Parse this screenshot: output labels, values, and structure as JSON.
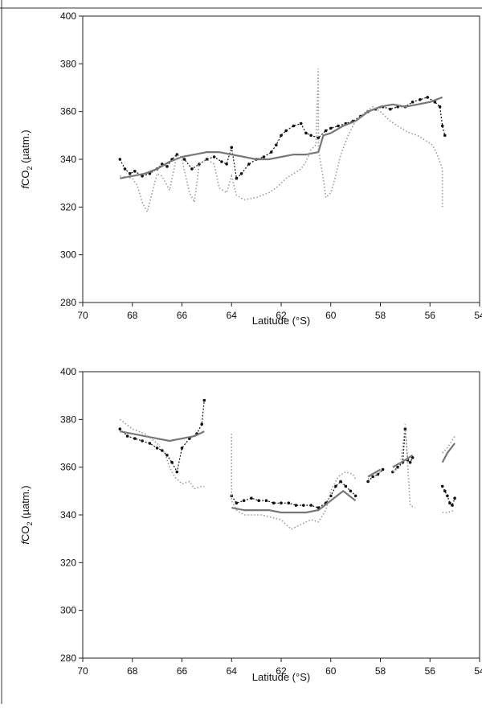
{
  "chart_data": [
    {
      "type": "scatter",
      "panel": "top",
      "xlabel": "Latitude (°S)",
      "ylabel": "fCO2 (µatm.)",
      "ylabel_parts": {
        "f": "f",
        "co": "CO",
        "sub": "2",
        "unit": " (µatm.)"
      },
      "xlim": [
        70,
        54
      ],
      "ylim": [
        280,
        400
      ],
      "x_ticks": [
        70,
        68,
        66,
        64,
        62,
        60,
        58,
        56,
        54
      ],
      "y_ticks": [
        280,
        300,
        320,
        340,
        360,
        380,
        400
      ],
      "x_tick_labels": [
        "70",
        "68",
        "66",
        "64",
        "62",
        "60",
        "58",
        "56",
        "54"
      ],
      "y_tick_labels": [
        "280",
        "300",
        "320",
        "340",
        "360",
        "380",
        "400"
      ],
      "grid": false,
      "series": [
        {
          "style": "black-dots",
          "color": "#111111",
          "segments": [
            {
              "x": [
                68.5,
                68.3,
                68.1,
                67.9,
                67.6,
                67.3,
                67.0,
                66.8,
                66.6,
                66.4,
                66.2,
                65.9,
                65.6,
                65.3,
                65.0,
                64.7,
                64.4,
                64.2,
                64.0,
                63.8,
                63.6,
                63.3,
                63.0,
                62.7,
                62.4,
                62.2,
                62.0,
                61.8,
                61.5,
                61.2,
                61.0,
                60.8,
                60.5,
                60.2,
                60.0,
                59.7,
                59.4,
                59.1,
                58.8,
                58.5,
                58.2,
                57.9,
                57.6,
                57.3,
                57.0,
                56.7,
                56.4,
                56.1,
                55.8,
                55.6,
                55.5,
                55.4
              ],
              "y": [
                340,
                336,
                334,
                335,
                333,
                334,
                336,
                338,
                337,
                340,
                342,
                340,
                336,
                338,
                340,
                341,
                339,
                338,
                345,
                332,
                334,
                338,
                340,
                341,
                343,
                346,
                350,
                352,
                354,
                355,
                351,
                350,
                349,
                352,
                353,
                354,
                355,
                356,
                358,
                360,
                361,
                362,
                361,
                362,
                362,
                364,
                365,
                366,
                364,
                362,
                354,
                350
              ]
            }
          ]
        },
        {
          "style": "grey-solid",
          "color": "#777777",
          "segments": [
            {
              "x": [
                68.5,
                68.0,
                67.5,
                67.0,
                66.5,
                66.0,
                65.5,
                65.0,
                64.5,
                64.0,
                63.5,
                63.0,
                62.5,
                62.0,
                61.5,
                61.0,
                60.5,
                60.3,
                60.0,
                59.5,
                59.0,
                58.5,
                58.0,
                57.5,
                57.0,
                56.5,
                56.0,
                55.5
              ],
              "y": [
                332,
                333,
                334,
                336,
                339,
                341,
                342,
                343,
                343,
                342,
                341,
                340,
                340,
                341,
                342,
                342,
                343,
                350,
                351,
                354,
                356,
                360,
                362,
                363,
                362,
                363,
                364,
                366
              ]
            }
          ]
        },
        {
          "style": "grey-dotted",
          "color": "#999999",
          "segments": [
            {
              "x": [
                68.5,
                68.0,
                67.8,
                67.6,
                67.4,
                67.2,
                67.0,
                66.8,
                66.5,
                66.2,
                66.0,
                65.7,
                65.5,
                65.3,
                65.0,
                64.7,
                64.5,
                64.2,
                64.0,
                63.8,
                63.5,
                63.0,
                62.5,
                62.2,
                62.0,
                61.8,
                61.5,
                61.2,
                61.0,
                60.8,
                60.6,
                60.5,
                60.5,
                60.3,
                60.2,
                60.0,
                59.8,
                59.6,
                59.3,
                59.0,
                58.6,
                58.3,
                58.0,
                57.6,
                57.3,
                57.0,
                56.8,
                56.5,
                56.2,
                55.9,
                55.7,
                55.5,
                55.5
              ],
              "y": [
                333,
                332,
                329,
                322,
                318,
                326,
                334,
                333,
                327,
                342,
                340,
                326,
                322,
                338,
                340,
                338,
                328,
                326,
                333,
                325,
                323,
                324,
                326,
                328,
                330,
                332,
                334,
                336,
                339,
                344,
                346,
                378,
                344,
                332,
                324,
                326,
                333,
                342,
                350,
                356,
                360,
                362,
                360,
                356,
                354,
                352,
                351,
                350,
                348,
                346,
                342,
                336,
                320
              ]
            }
          ]
        }
      ]
    },
    {
      "type": "scatter",
      "panel": "bottom",
      "xlabel": "Latitude (°S)",
      "ylabel": "fCO2 (µatm.)",
      "ylabel_parts": {
        "f": "f",
        "co": "CO",
        "sub": "2",
        "unit": " (µatm.)"
      },
      "xlim": [
        70,
        54
      ],
      "ylim": [
        280,
        400
      ],
      "x_ticks": [
        70,
        68,
        66,
        64,
        62,
        60,
        58,
        56,
        54
      ],
      "y_ticks": [
        280,
        300,
        320,
        340,
        360,
        380,
        400
      ],
      "x_tick_labels": [
        "70",
        "68",
        "66",
        "64",
        "62",
        "60",
        "58",
        "56",
        "54"
      ],
      "y_tick_labels": [
        "280",
        "300",
        "320",
        "340",
        "360",
        "380",
        "400"
      ],
      "grid": false,
      "series": [
        {
          "style": "black-dots",
          "color": "#111111",
          "segments": [
            {
              "x": [
                68.5,
                68.2,
                67.9,
                67.6,
                67.3,
                67.0,
                66.8,
                66.6,
                66.4,
                66.2,
                66.0,
                65.7,
                65.4,
                65.2,
                65.1
              ],
              "y": [
                376,
                373,
                372,
                371,
                370,
                368,
                367,
                365,
                362,
                358,
                368,
                372,
                374,
                378,
                388
              ]
            },
            {
              "x": [
                64.0,
                63.8,
                63.5,
                63.2,
                62.9,
                62.6,
                62.3,
                62.0,
                61.7,
                61.4,
                61.1,
                60.8,
                60.5,
                60.2,
                60.0,
                59.8,
                59.6,
                59.4,
                59.2,
                59.0
              ],
              "y": [
                348,
                345,
                346,
                347,
                346,
                346,
                345,
                345,
                345,
                344,
                344,
                344,
                343,
                345,
                348,
                352,
                354,
                352,
                350,
                348
              ]
            },
            {
              "x": [
                58.5,
                58.3,
                58.1,
                57.9
              ],
              "y": [
                354,
                356,
                357,
                359
              ]
            },
            {
              "x": [
                57.5,
                57.3,
                57.1,
                57.0,
                56.9,
                56.8,
                56.7
              ],
              "y": [
                358,
                360,
                362,
                376,
                363,
                362,
                364
              ]
            },
            {
              "x": [
                55.5,
                55.4,
                55.3,
                55.2,
                55.1,
                55.0
              ],
              "y": [
                352,
                350,
                348,
                345,
                344,
                347
              ]
            }
          ]
        },
        {
          "style": "grey-solid",
          "color": "#777777",
          "segments": [
            {
              "x": [
                68.5,
                68.0,
                67.5,
                67.0,
                66.5,
                66.0,
                65.5,
                65.1
              ],
              "y": [
                375,
                374,
                373,
                372,
                371,
                372,
                373,
                375
              ]
            },
            {
              "x": [
                64.0,
                63.5,
                63.0,
                62.5,
                62.0,
                61.5,
                61.0,
                60.5,
                60.0,
                59.5,
                59.0
              ],
              "y": [
                343,
                342,
                342,
                342,
                341,
                341,
                341,
                342,
                346,
                350,
                346
              ]
            },
            {
              "x": [
                58.5,
                58.0
              ],
              "y": [
                356,
                359
              ]
            },
            {
              "x": [
                57.5,
                57.0,
                56.7
              ],
              "y": [
                360,
                363,
                365
              ]
            },
            {
              "x": [
                55.5,
                55.3,
                55.0
              ],
              "y": [
                362,
                366,
                370
              ]
            }
          ]
        },
        {
          "style": "grey-dotted",
          "color": "#999999",
          "segments": [
            {
              "x": [
                68.5,
                68.0,
                67.5,
                67.0,
                66.7,
                66.5,
                66.3,
                66.0,
                65.7,
                65.5,
                65.2,
                65.1
              ],
              "y": [
                380,
                376,
                374,
                370,
                366,
                360,
                356,
                353,
                354,
                351,
                352,
                352
              ]
            },
            {
              "x": [
                64.0,
                64.0,
                63.8,
                63.5,
                63.2,
                62.8,
                62.4,
                62.0,
                61.6,
                61.2,
                60.8,
                60.5,
                60.2,
                60.0,
                59.7,
                59.4,
                59.1,
                59.0
              ],
              "y": [
                374,
                346,
                342,
                340,
                340,
                340,
                339,
                338,
                334,
                336,
                338,
                337,
                342,
                350,
                356,
                358,
                357,
                355
              ]
            },
            {
              "x": [
                58.5,
                58.0
              ],
              "y": [
                355,
                358
              ]
            },
            {
              "x": [
                57.5,
                57.2,
                57.0,
                56.8,
                56.6
              ],
              "y": [
                358,
                360,
                378,
                344,
                343
              ]
            },
            {
              "x": [
                55.5,
                55.3,
                55.0
              ],
              "y": [
                341,
                341,
                342
              ]
            },
            {
              "x": [
                55.5,
                55.3,
                55.0
              ],
              "y": [
                366,
                368,
                373
              ]
            }
          ]
        }
      ]
    }
  ]
}
